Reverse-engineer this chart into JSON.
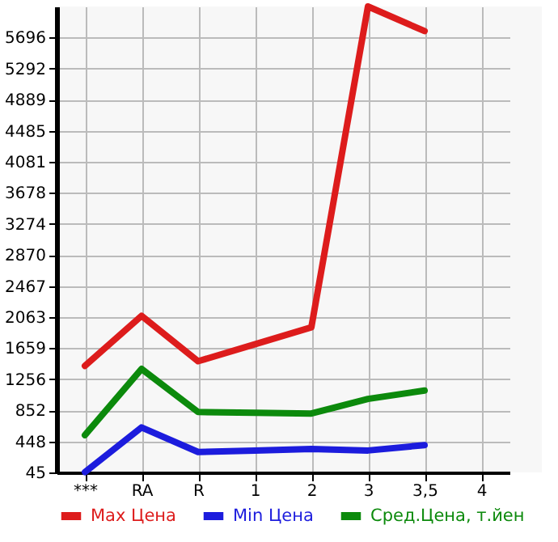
{
  "chart_data": {
    "type": "line",
    "categories": [
      "***",
      "RA",
      "R",
      "1",
      "2",
      "3",
      "3,5",
      "4"
    ],
    "series": [
      {
        "name": "Max Цена",
        "color": "#dd1c1c",
        "values": [
          1430,
          2080,
          1490,
          1710,
          1930,
          6100,
          5780,
          null
        ]
      },
      {
        "name": "Min Цена",
        "color": "#1c1cdd",
        "values": [
          50,
          630,
          310,
          330,
          350,
          330,
          400,
          null
        ]
      },
      {
        "name": "Сред.Цена, т.йен",
        "color": "#0c8a0c",
        "values": [
          530,
          1390,
          830,
          820,
          810,
          1000,
          1110,
          null
        ]
      }
    ],
    "ylim": [
      45,
      6100
    ],
    "yticks": [
      45,
      448,
      852,
      1256,
      1659,
      2063,
      2467,
      2870,
      3274,
      3678,
      4081,
      4485,
      4889,
      5292,
      5696
    ],
    "grid": true,
    "legend": "bottom",
    "line_style": "solid"
  }
}
